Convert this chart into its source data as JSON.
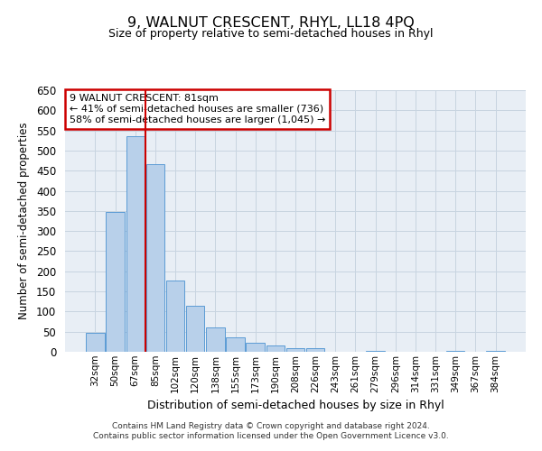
{
  "title": "9, WALNUT CRESCENT, RHYL, LL18 4PQ",
  "subtitle": "Size of property relative to semi-detached houses in Rhyl",
  "xlabel": "Distribution of semi-detached houses by size in Rhyl",
  "ylabel": "Number of semi-detached properties",
  "bar_labels": [
    "32sqm",
    "50sqm",
    "67sqm",
    "85sqm",
    "102sqm",
    "120sqm",
    "138sqm",
    "155sqm",
    "173sqm",
    "190sqm",
    "208sqm",
    "226sqm",
    "243sqm",
    "261sqm",
    "279sqm",
    "296sqm",
    "314sqm",
    "331sqm",
    "349sqm",
    "367sqm",
    "384sqm"
  ],
  "bar_values": [
    47,
    348,
    535,
    466,
    177,
    115,
    60,
    35,
    22,
    15,
    10,
    8,
    0,
    0,
    3,
    0,
    0,
    0,
    2,
    0,
    2
  ],
  "bar_color": "#b8d0ea",
  "bar_edge_color": "#5b9bd5",
  "vline_color": "#cc0000",
  "vline_position": 2.5,
  "ylim": [
    0,
    650
  ],
  "yticks": [
    0,
    50,
    100,
    150,
    200,
    250,
    300,
    350,
    400,
    450,
    500,
    550,
    600,
    650
  ],
  "annotation_title": "9 WALNUT CRESCENT: 81sqm",
  "annotation_line1": "← 41% of semi-detached houses are smaller (736)",
  "annotation_line2": "58% of semi-detached houses are larger (1,045) →",
  "annotation_box_color": "#ffffff",
  "annotation_box_edge": "#cc0000",
  "bg_color": "#e8eef5",
  "grid_color": "#c8d4e0",
  "footer1": "Contains HM Land Registry data © Crown copyright and database right 2024.",
  "footer2": "Contains public sector information licensed under the Open Government Licence v3.0."
}
